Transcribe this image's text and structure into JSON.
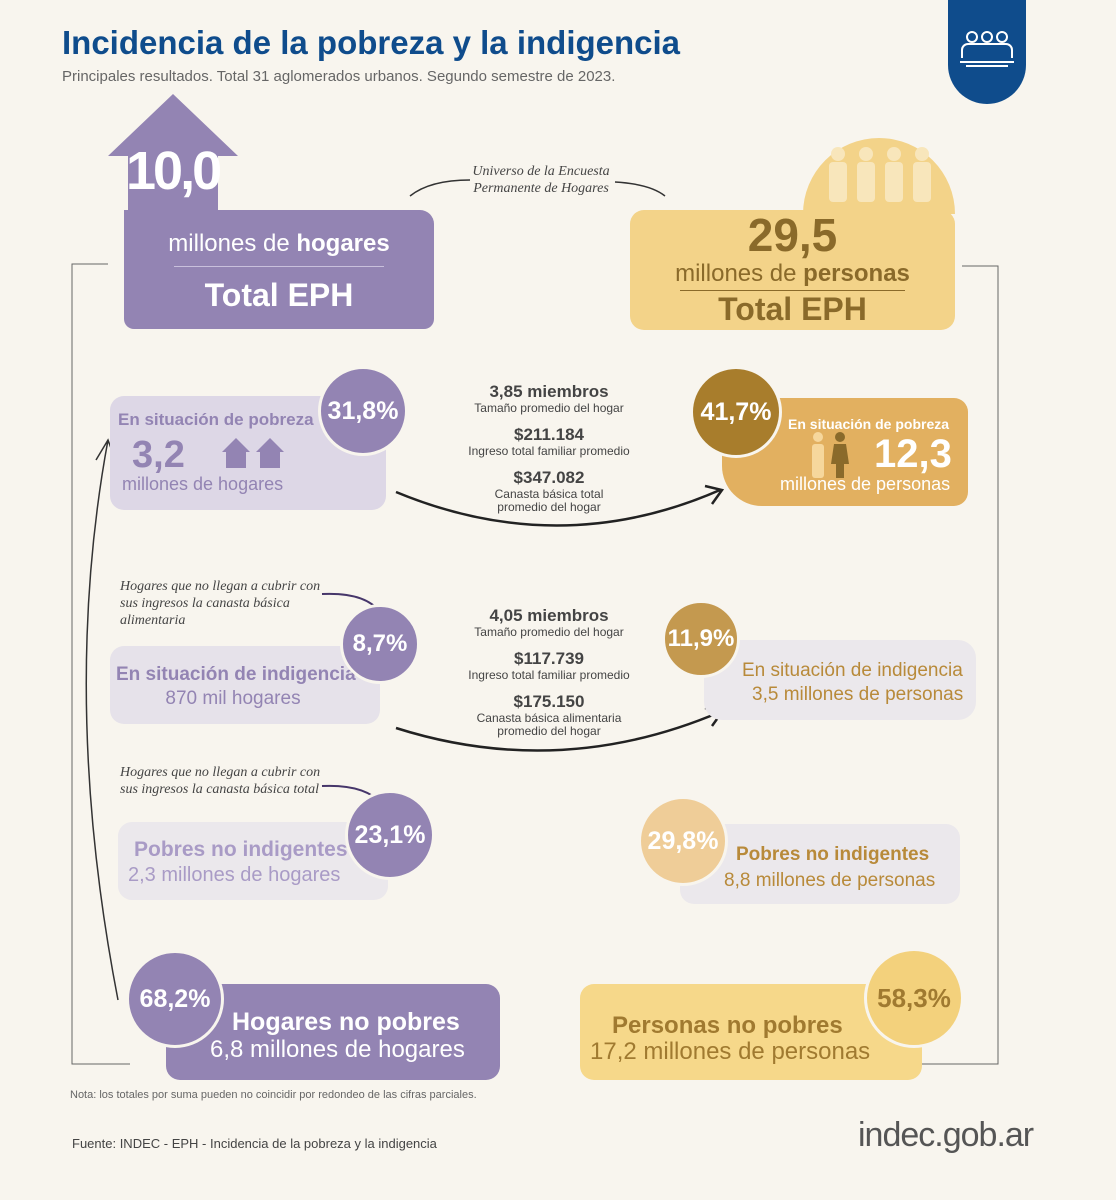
{
  "header": {
    "title": "Incidencia de la pobreza y la indigencia",
    "subtitle": "Principales resultados. Total 31 aglomerados urbanos. Segundo semestre de 2023.",
    "badge_icon": "people-group-icon"
  },
  "colors": {
    "title": "#0f4c8c",
    "purple": "#9384b3",
    "light_purple": "#ddd7e6",
    "gold": "#f3d389",
    "dark_gold": "#a87d2c",
    "background": "#f8f5ee"
  },
  "universe_label": "Universo de la Encuesta Permanente de Hogares",
  "hogares": {
    "total": "10,0",
    "unit_pre": "millones de ",
    "unit_bold": "hogares",
    "total_label": "Total EPH",
    "pobreza": {
      "label": "En situación de pobreza",
      "value": "3,2",
      "unit": "millones de hogares",
      "pct": "31,8%"
    },
    "indigencia": {
      "note": "Hogares que no llegan a cubrir con sus ingresos la canasta básica alimentaria",
      "label": "En situación de indigencia",
      "value": "870 mil hogares",
      "pct": "8,7%"
    },
    "no_indigentes": {
      "note": "Hogares que no llegan a cubrir con sus ingresos la canasta básica total",
      "label": "Pobres no indigentes",
      "value": "2,3 millones de hogares",
      "pct": "23,1%"
    },
    "no_pobres": {
      "label": "Hogares no pobres",
      "value": "6,8 millones de hogares",
      "pct": "68,2%"
    }
  },
  "personas": {
    "total": "29,5",
    "unit_pre": "millones de ",
    "unit_bold": "personas",
    "total_label": "Total EPH",
    "pobreza": {
      "label": "En situación de pobreza",
      "value": "12,3",
      "unit": "millones de personas",
      "pct": "41,7%"
    },
    "indigencia": {
      "label": "En situación de indigencia",
      "value": "3,5 millones de personas",
      "pct": "11,9%"
    },
    "no_indigentes": {
      "label": "Pobres no indigentes",
      "value": "8,8 millones de personas",
      "pct": "29,8%"
    },
    "no_pobres": {
      "label": "Personas no pobres",
      "value": "17,2 millones de personas",
      "pct": "58,3%"
    }
  },
  "pobreza_stats": [
    {
      "value": "3,85 miembros",
      "label": "Tamaño promedio del hogar"
    },
    {
      "value": "$211.184",
      "label": "Ingreso total familiar promedio"
    },
    {
      "value": "$347.082",
      "label": "Canasta básica total promedio del hogar"
    }
  ],
  "indigencia_stats": [
    {
      "value": "4,05 miembros",
      "label": "Tamaño promedio del hogar"
    },
    {
      "value": "$117.739",
      "label": "Ingreso total familiar promedio"
    },
    {
      "value": "$175.150",
      "label": "Canasta básica alimentaria promedio del hogar"
    }
  ],
  "footer": {
    "note": "Nota: los totales por suma pueden no coincidir por redondeo de las cifras parciales.",
    "source": "Fuente: INDEC - EPH - Incidencia de la pobreza y la indigencia",
    "logo": "indec.gob.ar"
  }
}
